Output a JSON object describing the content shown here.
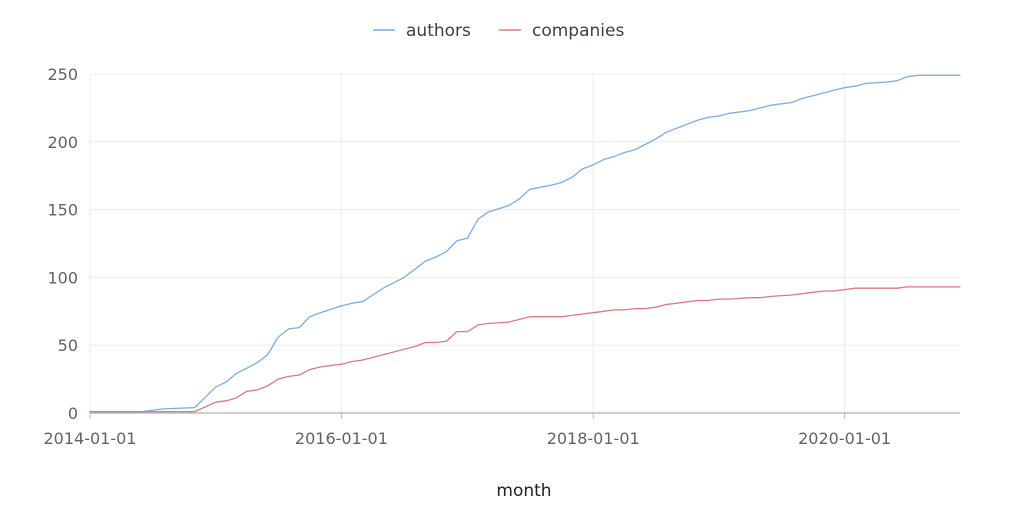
{
  "chart_data": {
    "type": "line",
    "title": "",
    "xlabel": "month",
    "ylabel": "",
    "ylim": [
      0,
      250
    ],
    "xlim": [
      "2014-01-01",
      "2020-12-01"
    ],
    "y_ticks": [
      0,
      50,
      100,
      150,
      200,
      250
    ],
    "x_ticks": [
      "2014-01-01",
      "2016-01-01",
      "2018-01-01",
      "2020-01-01"
    ],
    "grid": true,
    "legend_position": "top-center",
    "series": [
      {
        "name": "authors",
        "color": "#7aaedc",
        "points": [
          [
            "2014-01-01",
            1
          ],
          [
            "2014-06-01",
            1
          ],
          [
            "2014-08-01",
            3
          ],
          [
            "2014-11-01",
            4
          ],
          [
            "2015-01-01",
            19
          ],
          [
            "2015-02-01",
            23
          ],
          [
            "2015-03-01",
            29
          ],
          [
            "2015-04-01",
            33
          ],
          [
            "2015-05-01",
            37
          ],
          [
            "2015-06-01",
            43
          ],
          [
            "2015-07-01",
            56
          ],
          [
            "2015-08-01",
            62
          ],
          [
            "2015-09-01",
            63
          ],
          [
            "2015-10-01",
            71
          ],
          [
            "2015-11-01",
            74
          ],
          [
            "2016-01-01",
            79
          ],
          [
            "2016-02-01",
            81
          ],
          [
            "2016-03-01",
            82
          ],
          [
            "2016-04-01",
            87
          ],
          [
            "2016-05-01",
            92
          ],
          [
            "2016-06-01",
            96
          ],
          [
            "2016-07-01",
            100
          ],
          [
            "2016-08-01",
            106
          ],
          [
            "2016-09-01",
            112
          ],
          [
            "2016-10-01",
            115
          ],
          [
            "2016-11-01",
            119
          ],
          [
            "2016-12-01",
            127
          ],
          [
            "2017-01-01",
            129
          ],
          [
            "2017-02-01",
            143
          ],
          [
            "2017-03-01",
            148
          ],
          [
            "2017-05-01",
            153
          ],
          [
            "2017-06-01",
            158
          ],
          [
            "2017-07-01",
            165
          ],
          [
            "2017-09-01",
            168
          ],
          [
            "2017-10-01",
            170
          ],
          [
            "2017-11-01",
            174
          ],
          [
            "2017-12-01",
            180
          ],
          [
            "2018-01-01",
            183
          ],
          [
            "2018-02-01",
            187
          ],
          [
            "2018-03-01",
            189
          ],
          [
            "2018-04-01",
            192
          ],
          [
            "2018-05-01",
            194
          ],
          [
            "2018-06-01",
            198
          ],
          [
            "2018-07-01",
            202
          ],
          [
            "2018-08-01",
            207
          ],
          [
            "2018-09-01",
            210
          ],
          [
            "2018-10-01",
            213
          ],
          [
            "2018-11-01",
            216
          ],
          [
            "2018-12-01",
            218
          ],
          [
            "2019-01-01",
            219
          ],
          [
            "2019-02-01",
            221
          ],
          [
            "2019-04-01",
            223
          ],
          [
            "2019-05-01",
            225
          ],
          [
            "2019-06-01",
            227
          ],
          [
            "2019-08-01",
            229
          ],
          [
            "2019-09-01",
            232
          ],
          [
            "2019-10-01",
            234
          ],
          [
            "2019-11-01",
            236
          ],
          [
            "2019-12-01",
            238
          ],
          [
            "2020-01-01",
            240
          ],
          [
            "2020-02-01",
            241
          ],
          [
            "2020-03-01",
            243
          ],
          [
            "2020-05-01",
            244
          ],
          [
            "2020-06-01",
            245
          ],
          [
            "2020-07-01",
            248
          ],
          [
            "2020-08-01",
            249
          ],
          [
            "2020-12-01",
            249
          ]
        ]
      },
      {
        "name": "companies",
        "color": "#d97b7f",
        "points": [
          [
            "2014-01-01",
            1
          ],
          [
            "2014-06-01",
            1
          ],
          [
            "2014-08-01",
            1
          ],
          [
            "2014-11-01",
            1
          ],
          [
            "2015-01-01",
            8
          ],
          [
            "2015-02-01",
            9
          ],
          [
            "2015-03-01",
            11
          ],
          [
            "2015-04-01",
            16
          ],
          [
            "2015-05-01",
            17
          ],
          [
            "2015-06-01",
            20
          ],
          [
            "2015-07-01",
            25
          ],
          [
            "2015-08-01",
            27
          ],
          [
            "2015-09-01",
            28
          ],
          [
            "2015-10-01",
            32
          ],
          [
            "2015-11-01",
            34
          ],
          [
            "2016-01-01",
            36
          ],
          [
            "2016-02-01",
            38
          ],
          [
            "2016-03-01",
            39
          ],
          [
            "2016-04-01",
            41
          ],
          [
            "2016-05-01",
            43
          ],
          [
            "2016-06-01",
            45
          ],
          [
            "2016-07-01",
            47
          ],
          [
            "2016-08-01",
            49
          ],
          [
            "2016-09-01",
            52
          ],
          [
            "2016-10-01",
            52
          ],
          [
            "2016-11-01",
            53
          ],
          [
            "2016-12-01",
            60
          ],
          [
            "2017-01-01",
            60
          ],
          [
            "2017-02-01",
            65
          ],
          [
            "2017-03-01",
            66
          ],
          [
            "2017-05-01",
            67
          ],
          [
            "2017-06-01",
            69
          ],
          [
            "2017-07-01",
            71
          ],
          [
            "2017-09-01",
            71
          ],
          [
            "2017-10-01",
            71
          ],
          [
            "2017-11-01",
            72
          ],
          [
            "2017-12-01",
            73
          ],
          [
            "2018-01-01",
            74
          ],
          [
            "2018-02-01",
            75
          ],
          [
            "2018-03-01",
            76
          ],
          [
            "2018-04-01",
            76
          ],
          [
            "2018-05-01",
            77
          ],
          [
            "2018-06-01",
            77
          ],
          [
            "2018-07-01",
            78
          ],
          [
            "2018-08-01",
            80
          ],
          [
            "2018-09-01",
            81
          ],
          [
            "2018-10-01",
            82
          ],
          [
            "2018-11-01",
            83
          ],
          [
            "2018-12-01",
            83
          ],
          [
            "2019-01-01",
            84
          ],
          [
            "2019-02-01",
            84
          ],
          [
            "2019-04-01",
            85
          ],
          [
            "2019-05-01",
            85
          ],
          [
            "2019-06-01",
            86
          ],
          [
            "2019-08-01",
            87
          ],
          [
            "2019-09-01",
            88
          ],
          [
            "2019-10-01",
            89
          ],
          [
            "2019-11-01",
            90
          ],
          [
            "2019-12-01",
            90
          ],
          [
            "2020-01-01",
            91
          ],
          [
            "2020-02-01",
            92
          ],
          [
            "2020-03-01",
            92
          ],
          [
            "2020-05-01",
            92
          ],
          [
            "2020-06-01",
            92
          ],
          [
            "2020-07-01",
            93
          ],
          [
            "2020-08-01",
            93
          ],
          [
            "2020-12-01",
            93
          ]
        ]
      }
    ]
  }
}
